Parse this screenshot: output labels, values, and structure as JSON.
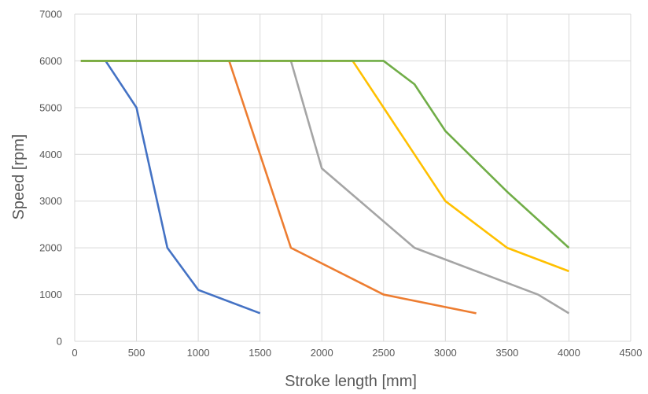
{
  "chart_data": {
    "type": "line",
    "title": "",
    "xlabel": "Stroke length [mm]",
    "ylabel": "Speed [rpm]",
    "xlim": [
      0,
      4500
    ],
    "ylim": [
      0,
      7000
    ],
    "xticks": [
      0,
      500,
      1000,
      1500,
      2000,
      2500,
      3000,
      3500,
      4000,
      4500
    ],
    "yticks": [
      0,
      1000,
      2000,
      3000,
      4000,
      5000,
      6000,
      7000
    ],
    "x_tick_labels": [
      "0",
      "500",
      "1000",
      "1500",
      "2000",
      "2500",
      "3000",
      "3500",
      "4000",
      "4500"
    ],
    "y_tick_labels": [
      "0",
      "1000",
      "2000",
      "3000",
      "4000",
      "5000",
      "6000",
      "7000"
    ],
    "grid": true,
    "legend": "none",
    "series": [
      {
        "color": "#4472c4",
        "points": [
          [
            50,
            6000
          ],
          [
            250,
            6000
          ],
          [
            500,
            5000
          ],
          [
            750,
            2000
          ],
          [
            1000,
            1100
          ],
          [
            1500,
            600
          ]
        ]
      },
      {
        "color": "#ed7d31",
        "points": [
          [
            50,
            6000
          ],
          [
            1250,
            6000
          ],
          [
            1500,
            4000
          ],
          [
            1750,
            2000
          ],
          [
            2500,
            1000
          ],
          [
            3250,
            600
          ]
        ]
      },
      {
        "color": "#a5a5a5",
        "points": [
          [
            50,
            6000
          ],
          [
            1750,
            6000
          ],
          [
            2000,
            3700
          ],
          [
            2750,
            2000
          ],
          [
            3750,
            1000
          ],
          [
            4000,
            600
          ]
        ]
      },
      {
        "color": "#ffc000",
        "points": [
          [
            50,
            6000
          ],
          [
            2250,
            6000
          ],
          [
            2500,
            5000
          ],
          [
            3000,
            3000
          ],
          [
            3500,
            2000
          ],
          [
            4000,
            1500
          ]
        ]
      },
      {
        "color": "#70ad47",
        "points": [
          [
            50,
            6000
          ],
          [
            2500,
            6000
          ],
          [
            2750,
            5500
          ],
          [
            3000,
            4500
          ],
          [
            3500,
            3200
          ],
          [
            4000,
            2000
          ]
        ]
      }
    ]
  }
}
